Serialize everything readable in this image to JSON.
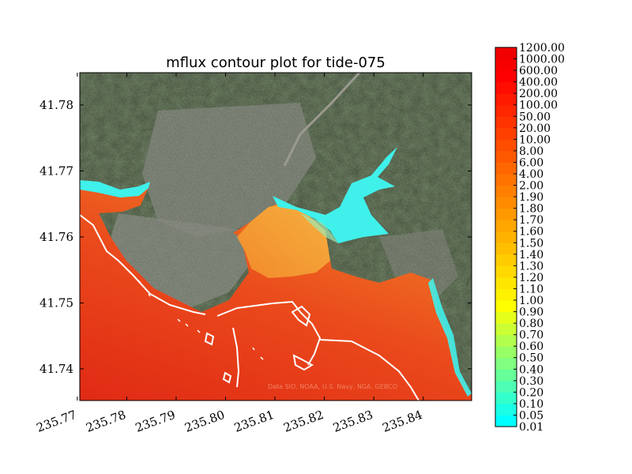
{
  "chart_data": {
    "type": "heatmap",
    "title": "mflux contour plot for tide-075",
    "xlabel": "",
    "ylabel": "",
    "xlim": [
      235.7705,
      235.8498
    ],
    "ylim": [
      41.7352,
      41.7849
    ],
    "x_ticks": [
      "235.77",
      "235.78",
      "235.79",
      "235.80",
      "235.81",
      "235.82",
      "235.83",
      "235.84"
    ],
    "x_tick_values": [
      235.77,
      235.78,
      235.79,
      235.8,
      235.81,
      235.82,
      235.83,
      235.84
    ],
    "y_ticks": [
      "41.74",
      "41.75",
      "41.76",
      "41.77",
      "41.78"
    ],
    "y_tick_values": [
      41.74,
      41.75,
      41.76,
      41.77,
      41.78
    ],
    "basemap_attribution": "Data SIO, NOAA, U.S. Navy, NGA, GEBCO",
    "colorbar": {
      "labels": [
        "0.01",
        "0.05",
        "0.10",
        "0.20",
        "0.30",
        "0.40",
        "0.50",
        "0.60",
        "0.70",
        "0.80",
        "0.90",
        "1.00",
        "1.10",
        "1.20",
        "1.30",
        "1.40",
        "1.50",
        "1.60",
        "1.70",
        "1.80",
        "1.90",
        "2.00",
        "4.00",
        "6.00",
        "8.00",
        "10.00",
        "20.00",
        "50.00",
        "100.00",
        "200.00",
        "400.00",
        "600.00",
        "1000.00",
        "1200.00"
      ],
      "colors": [
        "#00ffff",
        "#1affe6",
        "#33ffcc",
        "#4dffb3",
        "#66ff99",
        "#80ff80",
        "#99ff66",
        "#b3ff4d",
        "#ccff33",
        "#e6ff1a",
        "#ffff00",
        "#fff200",
        "#ffe600",
        "#ffd900",
        "#ffcc00",
        "#ffbf00",
        "#ffb300",
        "#ffa600",
        "#ff9900",
        "#ff8c00",
        "#ff8000",
        "#ff7300",
        "#ff6600",
        "#ff5900",
        "#ff4d00",
        "#ff4000",
        "#ff3300",
        "#ff2600",
        "#ff1a00",
        "#ff0d00",
        "#ff0000",
        "#f80000",
        "#f00000"
      ]
    },
    "colors": {
      "water_high": "#e8301a",
      "water_mid": "#f07020",
      "water_low": "#f0a030",
      "water_min": "#40f0f0",
      "land_dark": "#2e3b24",
      "land_mid": "#4a5a3a",
      "land_urban": "#7c7f78"
    }
  }
}
